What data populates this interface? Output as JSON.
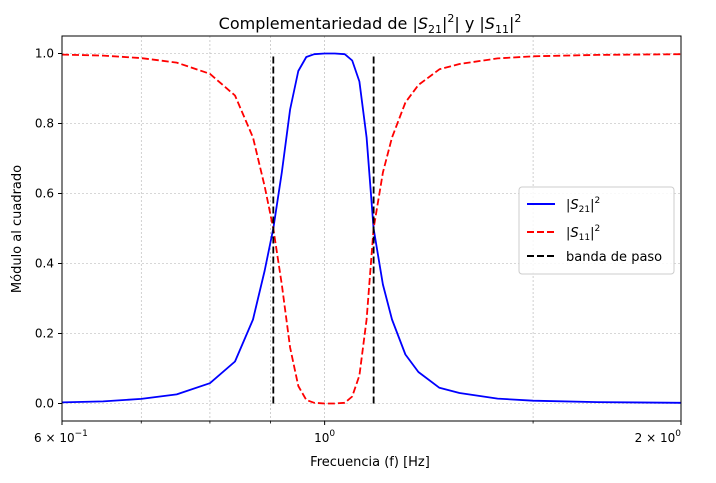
{
  "chart_data": {
    "type": "line",
    "title": "Complementariedad de |S21|² y |S11|²",
    "title_parts": {
      "prefix": "Complementariedad de |",
      "s21_base": "S",
      "s21_sub": "21",
      "sup1": "2",
      "mid": "| y |",
      "s11_base": "S",
      "s11_sub": "11",
      "suffix": "|",
      "sup2": "2"
    },
    "xlabel": "Frecuencia (f) [Hz]",
    "ylabel": "Módulo al cuadrado",
    "x_scale": "log",
    "xlim": [
      0.6,
      2.0
    ],
    "ylim": [
      -0.05,
      1.05
    ],
    "grid": true,
    "x_ticks": [
      {
        "value": 0.6,
        "base": "6 × 10",
        "exp": "−1"
      },
      {
        "value": 1.0,
        "base": "10",
        "exp": "0"
      },
      {
        "value": 2.0,
        "base": "2 × 10",
        "exp": "0"
      }
    ],
    "x_minor_ticks": [
      0.7,
      0.8,
      0.9,
      1.5
    ],
    "y_ticks": [
      {
        "value": 0.0,
        "label": "0.0"
      },
      {
        "value": 0.2,
        "label": "0.2"
      },
      {
        "value": 0.4,
        "label": "0.4"
      },
      {
        "value": 0.6,
        "label": "0.6"
      },
      {
        "value": 0.8,
        "label": "0.8"
      },
      {
        "value": 1.0,
        "label": "1.0"
      }
    ],
    "legend": {
      "placement": "center-right",
      "entries": [
        {
          "key": "s21",
          "base": "S",
          "sub": "21",
          "sup": "2",
          "color": "#0000ff",
          "dash": "solid"
        },
        {
          "key": "s11",
          "base": "S",
          "sub": "11",
          "sup": "2",
          "color": "#ff0000",
          "dash": "dashed"
        },
        {
          "key": "band",
          "label": "banda de paso",
          "color": "#000000",
          "dash": "dashed"
        }
      ]
    },
    "series": [
      {
        "key": "s21",
        "color": "#0000ff",
        "dash": "solid",
        "x": [
          0.6,
          0.65,
          0.7,
          0.75,
          0.8,
          0.84,
          0.87,
          0.89,
          0.905,
          0.92,
          0.935,
          0.95,
          0.965,
          0.98,
          1.0,
          1.02,
          1.04,
          1.055,
          1.07,
          1.085,
          1.1,
          1.12,
          1.14,
          1.17,
          1.2,
          1.25,
          1.3,
          1.4,
          1.5,
          1.7,
          2.0
        ],
        "y": [
          0.003,
          0.006,
          0.013,
          0.026,
          0.058,
          0.12,
          0.24,
          0.38,
          0.5,
          0.66,
          0.84,
          0.95,
          0.99,
          0.998,
          1.0,
          1.0,
          0.998,
          0.98,
          0.92,
          0.76,
          0.5,
          0.34,
          0.24,
          0.14,
          0.09,
          0.045,
          0.03,
          0.014,
          0.008,
          0.004,
          0.002
        ]
      },
      {
        "key": "s11",
        "color": "#ff0000",
        "dash": "dashed",
        "x": [
          0.6,
          0.65,
          0.7,
          0.75,
          0.8,
          0.84,
          0.87,
          0.89,
          0.905,
          0.92,
          0.935,
          0.95,
          0.965,
          0.98,
          1.0,
          1.02,
          1.04,
          1.055,
          1.07,
          1.085,
          1.1,
          1.12,
          1.14,
          1.17,
          1.2,
          1.25,
          1.3,
          1.4,
          1.5,
          1.7,
          2.0
        ],
        "y": [
          0.997,
          0.994,
          0.987,
          0.974,
          0.942,
          0.88,
          0.76,
          0.62,
          0.5,
          0.34,
          0.16,
          0.05,
          0.01,
          0.002,
          0.0,
          0.0,
          0.002,
          0.02,
          0.08,
          0.24,
          0.5,
          0.66,
          0.76,
          0.86,
          0.91,
          0.955,
          0.97,
          0.986,
          0.992,
          0.996,
          0.998
        ]
      }
    ],
    "band_edges": [
      0.905,
      1.1
    ],
    "band_range": [
      0.0,
      1.0
    ]
  }
}
